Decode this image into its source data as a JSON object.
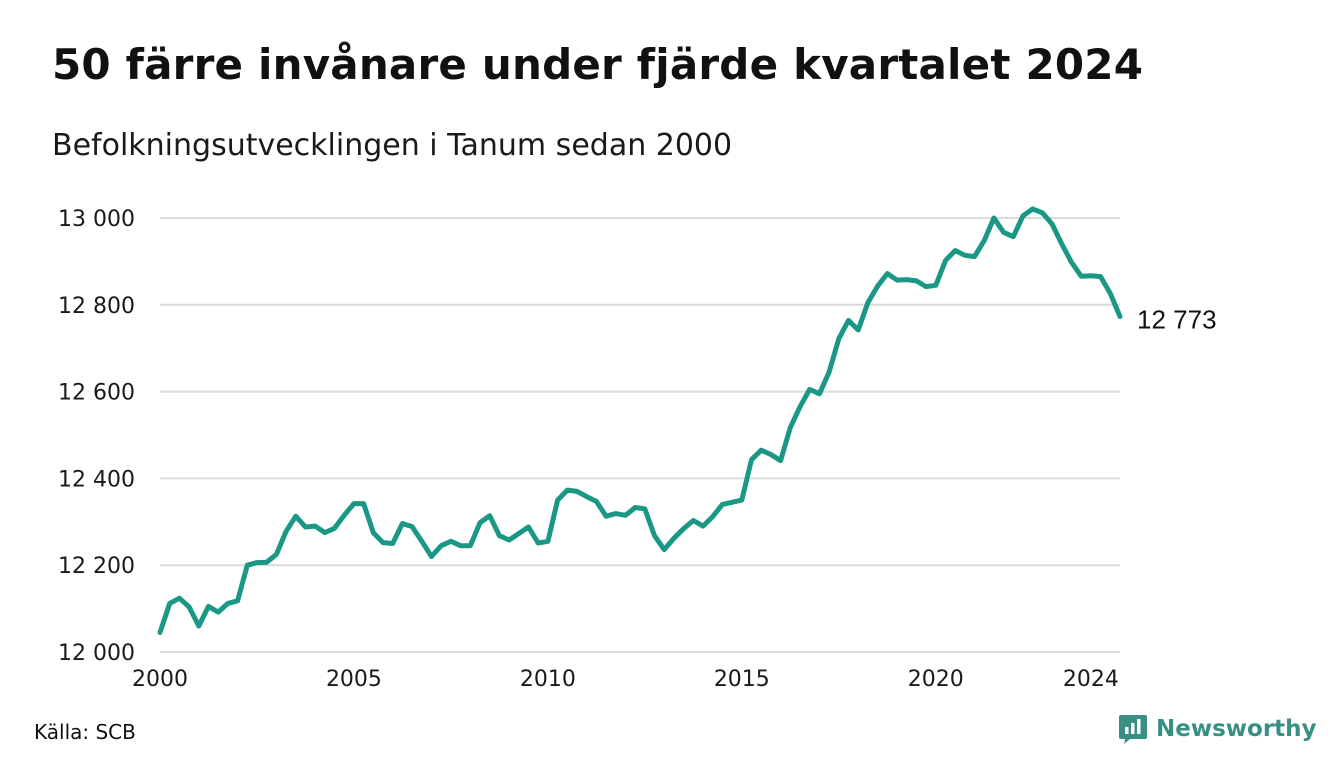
{
  "header": {
    "title": "50 färre invånare under fjärde kvartalet 2024",
    "subtitle": "Befolkningsutvecklingen i Tanum sedan 2000"
  },
  "footer": {
    "source": "Källa: SCB",
    "brand": "Newsworthy",
    "brand_icon": "newsworthy-logo-icon"
  },
  "colors": {
    "line": "#1a9885",
    "grid": "#dcdcdc",
    "brand": "#3a8f84"
  },
  "chart_data": {
    "type": "line",
    "title": "50 färre invånare under fjärde kvartalet 2024",
    "subtitle": "Befolkningsutvecklingen i Tanum sedan 2000",
    "x_start": 2000,
    "x_step_years": 0.25,
    "xlim": [
      2000,
      2024.75
    ],
    "ylim": [
      12000,
      13000
    ],
    "xticks": [
      2000,
      2005,
      2010,
      2015,
      2020,
      2024
    ],
    "xtick_labels": [
      "2000",
      "2005",
      "2010",
      "2015",
      "2020",
      "2024"
    ],
    "yticks": [
      12000,
      12200,
      12400,
      12600,
      12800,
      13000
    ],
    "ytick_labels": [
      "12 000",
      "12 200",
      "12 400",
      "12 600",
      "12 800",
      "13 000"
    ],
    "grid": true,
    "last_value_label": "12 773",
    "series": [
      {
        "values": [
          12045,
          12112,
          12124,
          12104,
          12060,
          12105,
          12092,
          12112,
          12118,
          12200,
          12206,
          12207,
          12225,
          12278,
          12313,
          12288,
          12290,
          12275,
          12285,
          12315,
          12342,
          12342,
          12275,
          12252,
          12250,
          12296,
          12289,
          12255,
          12220,
          12245,
          12255,
          12245,
          12245,
          12298,
          12314,
          12268,
          12258,
          12273,
          12288,
          12251,
          12255,
          12350,
          12373,
          12370,
          12358,
          12347,
          12313,
          12319,
          12315,
          12333,
          12330,
          12268,
          12236,
          12262,
          12284,
          12303,
          12290,
          12312,
          12340,
          12345,
          12350,
          12443,
          12465,
          12455,
          12441,
          12517,
          12565,
          12605,
          12595,
          12645,
          12722,
          12764,
          12742,
          12805,
          12843,
          12872,
          12857,
          12858,
          12855,
          12842,
          12845,
          12902,
          12925,
          12914,
          12911,
          12948,
          13000,
          12967,
          12957,
          13005,
          13021,
          13012,
          12986,
          12940,
          12898,
          12866,
          12867,
          12865,
          12826,
          12773
        ]
      }
    ]
  }
}
